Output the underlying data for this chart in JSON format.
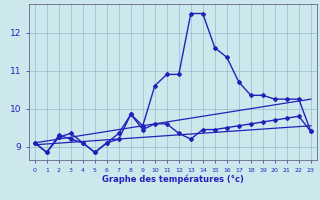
{
  "background_color": "#cce8ec",
  "grid_color": "#99bbcc",
  "line_color": "#2222bb",
  "xlabel": "Graphe des températures (°c)",
  "xlabel_color": "#2222bb",
  "xlim": [
    -0.5,
    23.5
  ],
  "ylim": [
    8.65,
    12.75
  ],
  "yticks": [
    9,
    10,
    11,
    12
  ],
  "curve1_x": [
    0,
    1,
    2,
    3,
    4,
    5,
    6,
    7,
    8,
    9,
    10,
    11,
    12,
    13,
    14,
    15,
    16,
    17,
    18,
    19,
    20,
    21,
    22,
    23
  ],
  "curve1_y": [
    9.1,
    8.85,
    9.25,
    9.35,
    9.1,
    8.85,
    9.1,
    9.2,
    9.85,
    9.55,
    10.6,
    10.9,
    10.9,
    12.5,
    12.5,
    11.6,
    11.35,
    10.7,
    10.35,
    10.35,
    10.25,
    10.25,
    10.25,
    9.4
  ],
  "curve2_x": [
    0,
    1,
    2,
    3,
    4,
    5,
    6,
    7,
    8,
    9,
    10,
    11,
    12,
    13,
    14,
    15,
    16,
    17,
    18,
    19,
    20,
    21,
    22,
    23
  ],
  "curve2_y": [
    9.1,
    8.85,
    9.3,
    9.2,
    9.1,
    8.85,
    9.1,
    9.35,
    9.85,
    9.45,
    9.6,
    9.6,
    9.35,
    9.2,
    9.45,
    9.45,
    9.5,
    9.55,
    9.6,
    9.65,
    9.7,
    9.75,
    9.8,
    9.4
  ],
  "trend1_x": [
    0,
    23
  ],
  "trend1_y": [
    9.1,
    10.25
  ],
  "trend2_x": [
    0,
    23
  ],
  "trend2_y": [
    9.05,
    9.55
  ]
}
